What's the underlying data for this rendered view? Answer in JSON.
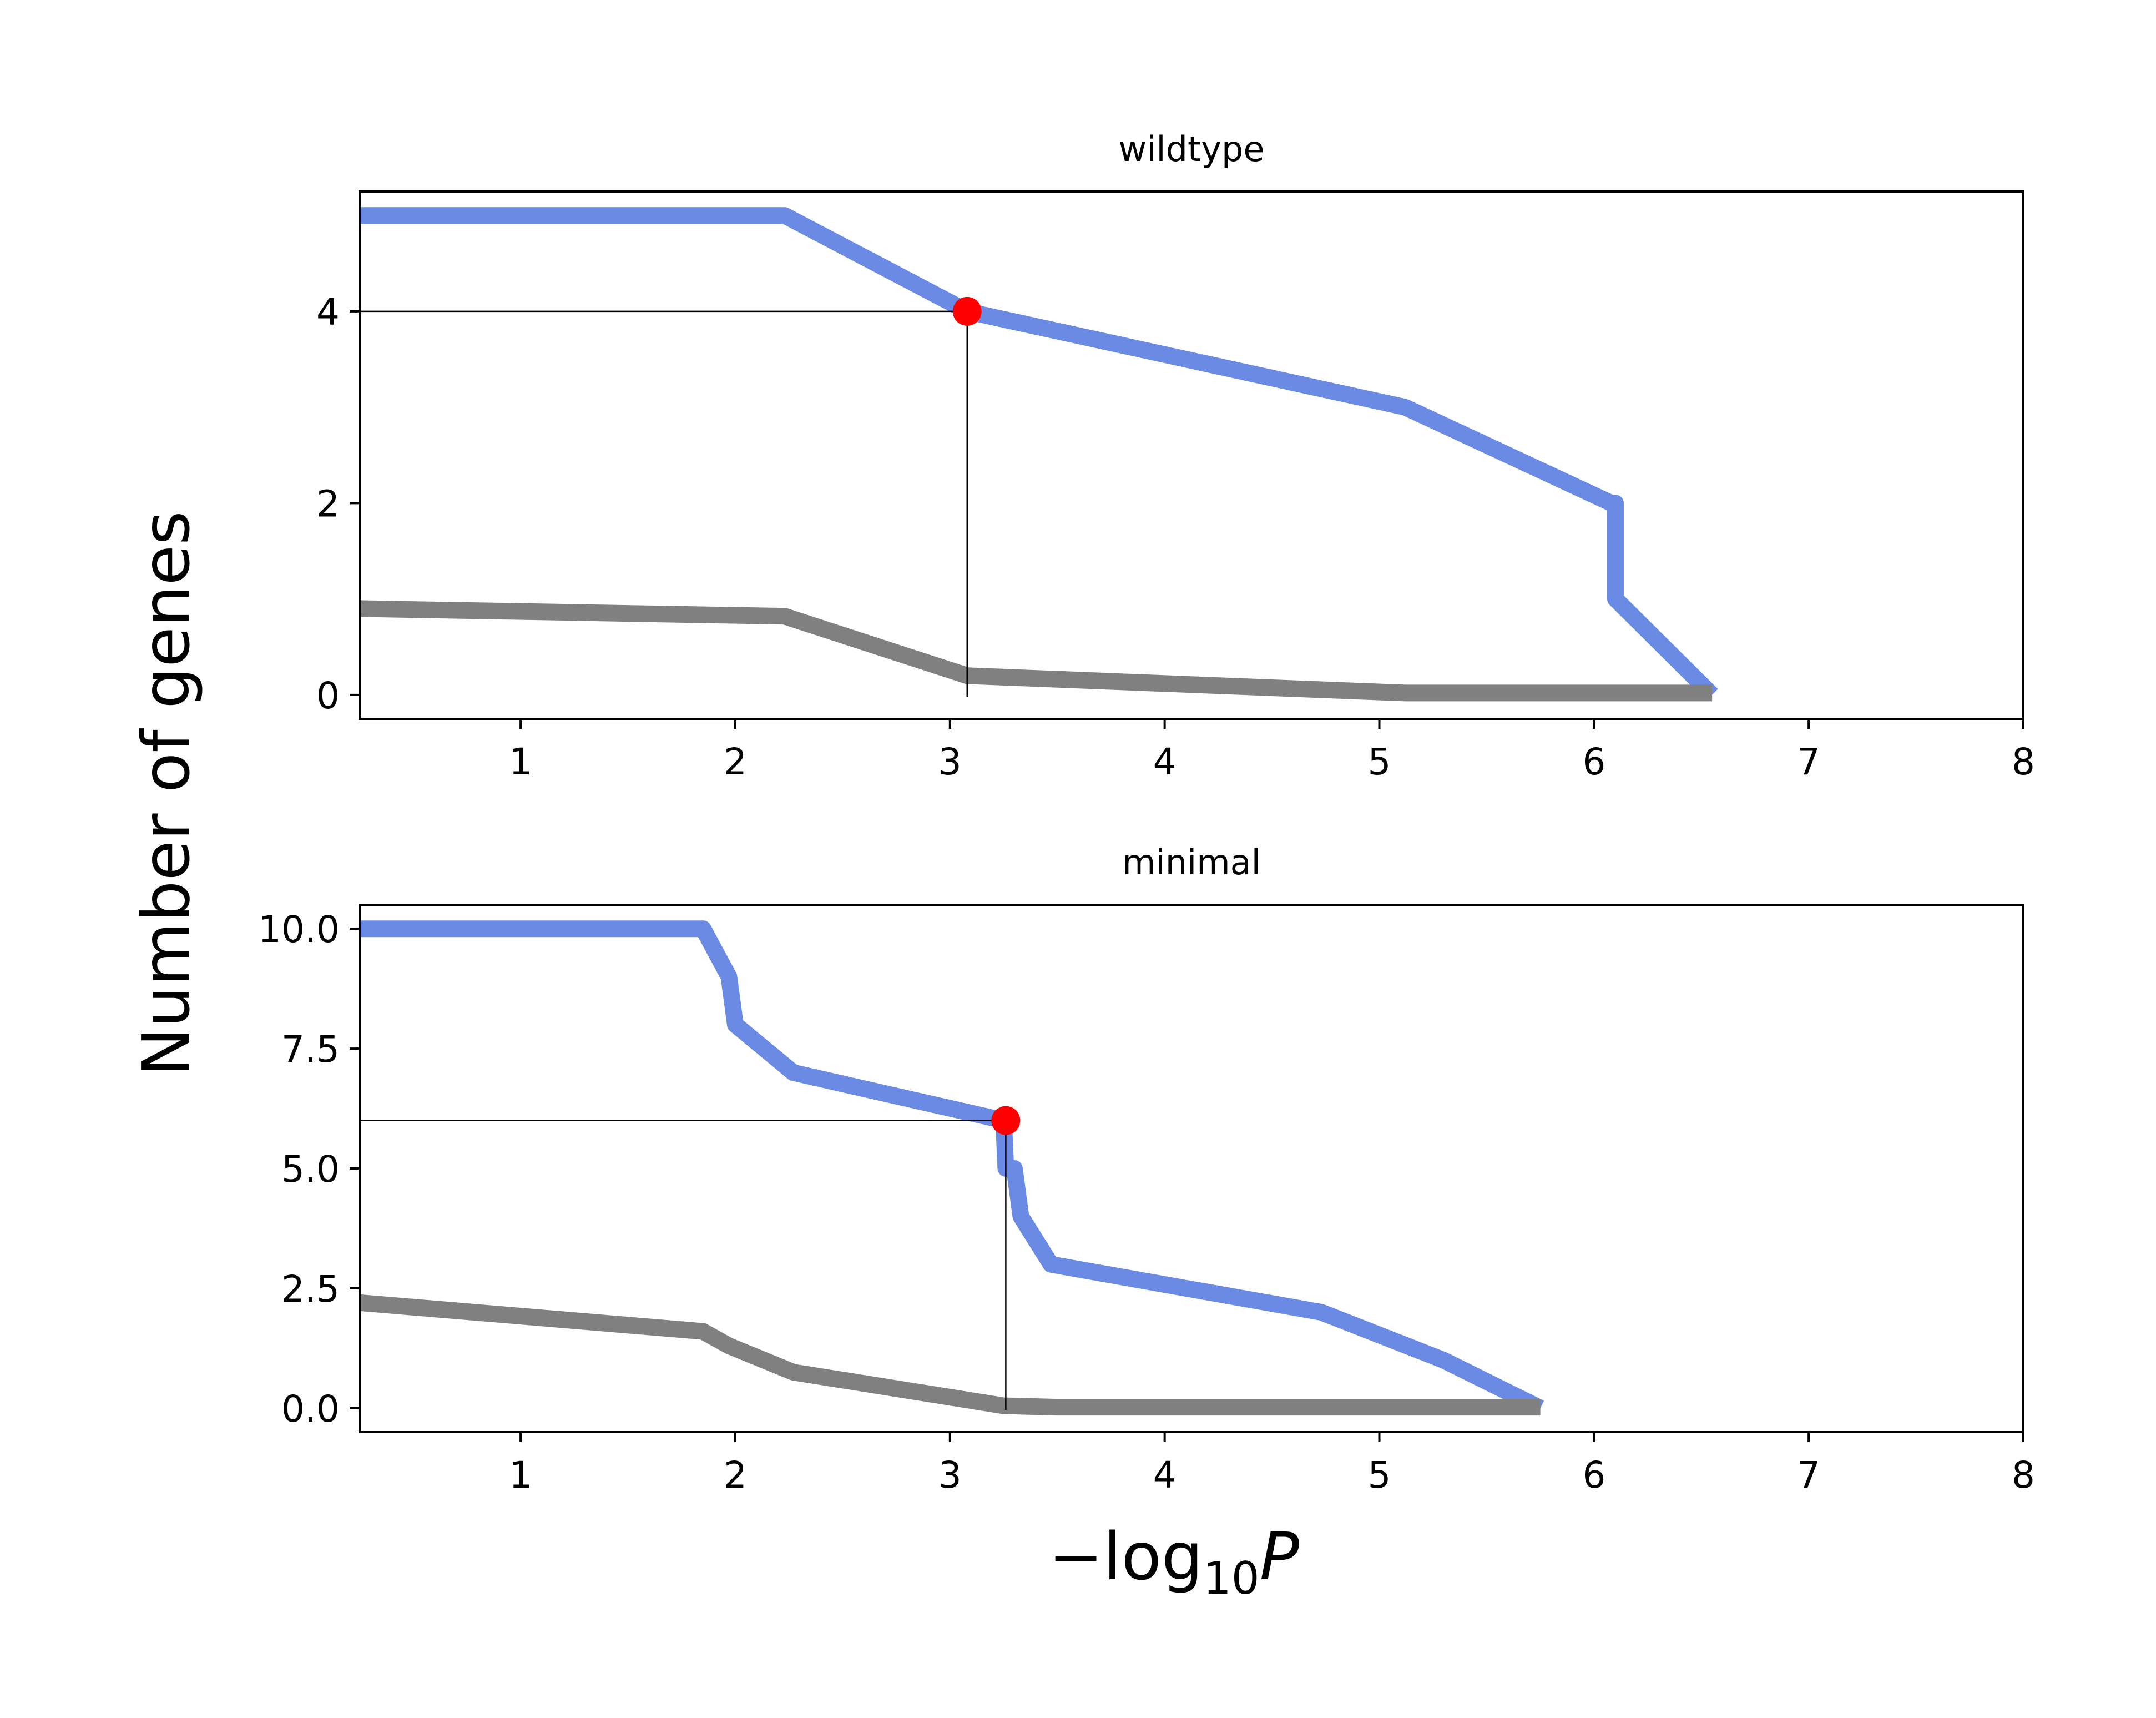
{
  "figure": {
    "ylabel": "Number of genes",
    "xlabel_main": "−log",
    "xlabel_sub": "10",
    "xlabel_var": "P"
  },
  "colors": {
    "observed": "#6a8ae4",
    "background": "#808080",
    "marker": "#ff0000",
    "guide": "#000000"
  },
  "chart_data": [
    {
      "type": "line",
      "title": "wildtype",
      "xlim": [
        0.25,
        8
      ],
      "ylim": [
        -0.25,
        5.25
      ],
      "xticks": [
        1,
        2,
        3,
        4,
        5,
        6,
        7,
        8
      ],
      "xtick_labels": [
        "1",
        "2",
        "3",
        "4",
        "5",
        "6",
        "7",
        "8"
      ],
      "yticks": [
        0,
        2,
        4
      ],
      "ytick_labels": [
        "0",
        "2",
        "4"
      ],
      "grid": false,
      "series": [
        {
          "role": "observed",
          "x": [
            0.25,
            2.23,
            3.08,
            5.12,
            6.08,
            6.1,
            6.1,
            6.55
          ],
          "y": [
            5,
            5,
            4,
            3,
            2,
            2,
            1,
            0
          ]
        },
        {
          "role": "background",
          "x": [
            0.25,
            2.23,
            3.08,
            5.12,
            6.55
          ],
          "y": [
            0.9,
            0.82,
            0.2,
            0.02,
            0.02
          ]
        }
      ],
      "marker": {
        "x": 3.08,
        "y": 4
      }
    },
    {
      "type": "line",
      "title": "minimal",
      "xlim": [
        0.25,
        8
      ],
      "ylim": [
        -0.5,
        10.5
      ],
      "xticks": [
        1,
        2,
        3,
        4,
        5,
        6,
        7,
        8
      ],
      "xtick_labels": [
        "1",
        "2",
        "3",
        "4",
        "5",
        "6",
        "7",
        "8"
      ],
      "yticks": [
        0,
        2.5,
        5,
        7.5,
        10
      ],
      "ytick_labels": [
        "0.0",
        "2.5",
        "5.0",
        "7.5",
        "10.0"
      ],
      "grid": false,
      "series": [
        {
          "role": "observed",
          "x": [
            0.25,
            1.85,
            1.97,
            2.0,
            2.27,
            3.25,
            3.26,
            3.3,
            3.33,
            3.47,
            4.73,
            5.3,
            5.75
          ],
          "y": [
            10,
            10,
            9,
            8,
            7,
            6,
            5,
            5,
            4,
            3,
            2,
            1,
            0
          ]
        },
        {
          "role": "background",
          "x": [
            0.25,
            1.85,
            1.97,
            2.27,
            3.25,
            3.5,
            4.73,
            5.75
          ],
          "y": [
            2.2,
            1.6,
            1.3,
            0.75,
            0.05,
            0.02,
            0.02,
            0.02
          ]
        }
      ],
      "marker": {
        "x": 3.26,
        "y": 6
      }
    }
  ]
}
